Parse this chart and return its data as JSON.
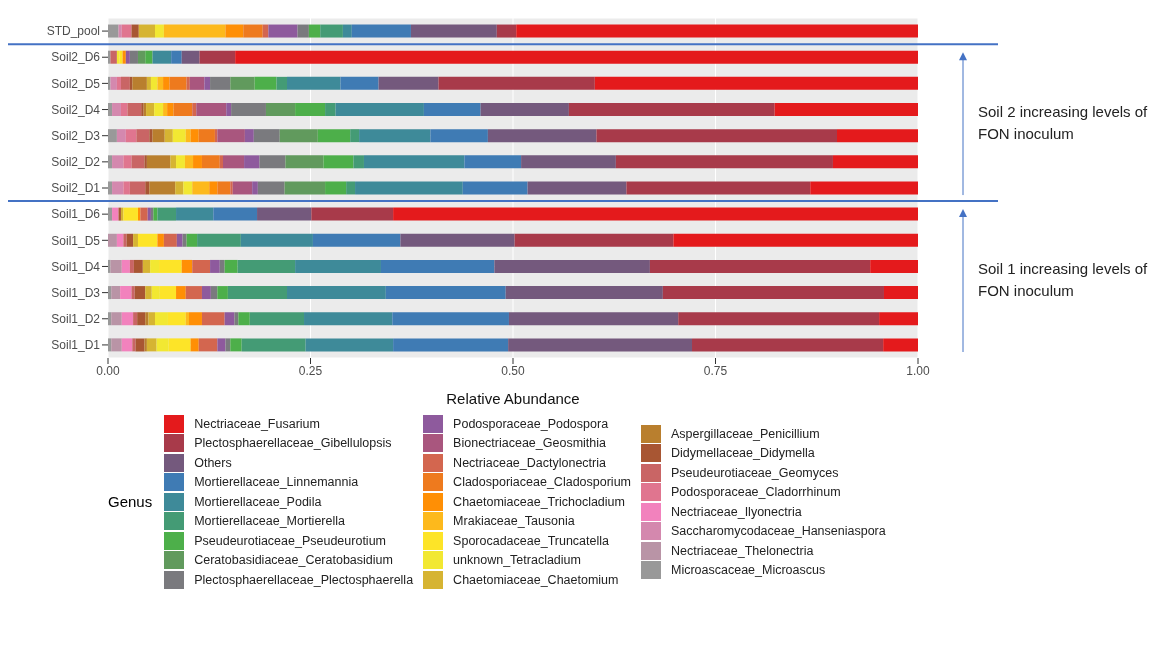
{
  "chart_data": {
    "type": "bar",
    "orientation": "horizontal",
    "stacked": true,
    "categories": [
      "STD_pool",
      "Soil2_D6",
      "Soil2_D5",
      "Soil2_D4",
      "Soil2_D3",
      "Soil2_D2",
      "Soil2_D1",
      "Soil1_D6",
      "Soil1_D5",
      "Soil1_D4",
      "Soil1_D3",
      "Soil1_D2",
      "Soil1_D1"
    ],
    "xlabel": "Relative Abundance",
    "legend_title": "Genus",
    "legend": "bottom",
    "grid": true,
    "xlim": [
      0,
      1
    ],
    "xticks": [
      {
        "value": 0,
        "label": "0.00"
      },
      {
        "value": 0.25,
        "label": "0.25"
      },
      {
        "value": 0.5,
        "label": "0.50"
      },
      {
        "value": 0.75,
        "label": "0.75"
      },
      {
        "value": 1,
        "label": "1.00"
      }
    ],
    "annotations": [
      "Soil 2 increasing levels of FON inoculum",
      "Soil 1 increasing levels of FON inoculum"
    ],
    "series": [
      {
        "name": "Microascaceae_Microascus",
        "color": "#999999",
        "values": [
          0.013,
          0.003,
          0.003,
          0.005,
          0.011,
          0.005,
          0.005,
          0.005,
          0,
          0.003,
          0.004,
          0.004,
          0.004
        ]
      },
      {
        "name": "Nectriaceae_Thelonectria",
        "color": "#b994a6",
        "values": [
          0,
          0,
          0,
          0,
          0,
          0,
          0,
          0,
          0.011,
          0.014,
          0.011,
          0.013,
          0.013
        ]
      },
      {
        "name": "Saccharomycodaceae_Hanseniaspora",
        "color": "#d488ae",
        "values": [
          0.004,
          0,
          0.008,
          0.011,
          0.011,
          0.014,
          0.014,
          0,
          0,
          0,
          0,
          0,
          0
        ]
      },
      {
        "name": "Nectriaceae_Ilyonectria",
        "color": "#f282bd",
        "values": [
          0,
          0,
          0,
          0,
          0,
          0,
          0,
          0.008,
          0.008,
          0.01,
          0.014,
          0.014,
          0.013
        ]
      },
      {
        "name": "Podosporaceae_Cladorrhinum",
        "color": "#e0758f",
        "values": [
          0.012,
          0,
          0.005,
          0.008,
          0.013,
          0.01,
          0.008,
          0,
          0,
          0,
          0,
          0,
          0
        ]
      },
      {
        "name": "Pseudeurotiaceae_Geomyces",
        "color": "#c96565",
        "values": [
          0,
          0.008,
          0.011,
          0.017,
          0.016,
          0.016,
          0.019,
          0,
          0.004,
          0.005,
          0.004,
          0.005,
          0.004
        ]
      },
      {
        "name": "Didymellaceae_Didymella",
        "color": "#a85633",
        "values": [
          0.009,
          0,
          0.003,
          0.003,
          0.004,
          0.003,
          0.005,
          0.003,
          0.008,
          0.011,
          0.013,
          0.01,
          0.011
        ]
      },
      {
        "name": "Aspergillaceae_Penicillium",
        "color": "#b97f2e",
        "values": [
          0,
          0,
          0.018,
          0.003,
          0.015,
          0.029,
          0.032,
          0,
          0,
          0,
          0,
          0.004,
          0.003
        ]
      },
      {
        "name": "Chaetomiaceae_Chaetomium",
        "color": "#d6b432",
        "values": [
          0.02,
          0,
          0.005,
          0.01,
          0.01,
          0.007,
          0.01,
          0.003,
          0.006,
          0.009,
          0.008,
          0.008,
          0.012
        ]
      },
      {
        "name": "unknown_Tetracladium",
        "color": "#f2e832",
        "values": [
          0.011,
          0.003,
          0.008,
          0.011,
          0.016,
          0.011,
          0.011,
          0,
          0,
          0.011,
          0.01,
          0.016,
          0.015
        ]
      },
      {
        "name": "Sporocadaceae_Truncatella",
        "color": "#fde428",
        "values": [
          0,
          0.004,
          0,
          0,
          0,
          0,
          0,
          0.018,
          0.024,
          0.028,
          0.02,
          0.022,
          0.027
        ]
      },
      {
        "name": "Mrakiaceae_Tausonia",
        "color": "#fdb91c",
        "values": [
          0.076,
          0,
          0.007,
          0.005,
          0.006,
          0.01,
          0.021,
          0,
          0,
          0,
          0,
          0.004,
          0
        ]
      },
      {
        "name": "Chaetomiaceae_Trichocladium",
        "color": "#ff8f05",
        "values": [
          0.022,
          0.004,
          0.008,
          0.008,
          0.01,
          0.011,
          0.01,
          0.003,
          0.008,
          0.013,
          0.012,
          0.016,
          0.01
        ]
      },
      {
        "name": "Cladosporiaceae_Cladosporium",
        "color": "#ee7a1e",
        "values": [
          0.024,
          0,
          0.021,
          0.023,
          0.02,
          0.022,
          0.016,
          0,
          0,
          0,
          0,
          0,
          0
        ]
      },
      {
        "name": "Nectriaceae_Dactylonectria",
        "color": "#d3664f",
        "values": [
          0.007,
          0,
          0.004,
          0.005,
          0.003,
          0.004,
          0.003,
          0.009,
          0.016,
          0.022,
          0.02,
          0.028,
          0.023
        ]
      },
      {
        "name": "Bionectriaceae_Geosmithia",
        "color": "#a9567e",
        "values": [
          0,
          0,
          0.018,
          0.037,
          0.034,
          0.026,
          0.024,
          0,
          0,
          0,
          0,
          0,
          0
        ]
      },
      {
        "name": "Podosporaceae_Podospora",
        "color": "#8e5a9d",
        "values": [
          0.036,
          0.005,
          0.007,
          0.006,
          0.011,
          0.019,
          0.007,
          0.004,
          0.007,
          0.012,
          0.011,
          0.012,
          0.01
        ]
      },
      {
        "name": "Plectosphaerellaceae_Plectosphaerella",
        "color": "#7a7a7e",
        "values": [
          0.014,
          0.01,
          0.025,
          0.043,
          0.032,
          0.032,
          0.033,
          0.003,
          0.005,
          0.006,
          0.008,
          0.005,
          0.006
        ]
      },
      {
        "name": "Ceratobasidiaceae_Ceratobasidium",
        "color": "#619a5d",
        "values": [
          0,
          0.009,
          0.03,
          0.036,
          0.047,
          0.047,
          0.05,
          0,
          0,
          0,
          0,
          0,
          0
        ]
      },
      {
        "name": "Pseudeurotiaceae_Pseudeurotium",
        "color": "#4daf4a",
        "values": [
          0.014,
          0.009,
          0.027,
          0.037,
          0.04,
          0.037,
          0.026,
          0.005,
          0.013,
          0.016,
          0.013,
          0.014,
          0.014
        ]
      },
      {
        "name": "Mortierellaceae_Mortierella",
        "color": "#449b75",
        "values": [
          0.028,
          0,
          0.013,
          0.013,
          0.011,
          0.013,
          0.011,
          0.023,
          0.054,
          0.071,
          0.073,
          0.067,
          0.079
        ]
      },
      {
        "name": "Mortierellaceae_Podila",
        "color": "#3e8a99",
        "values": [
          0.011,
          0.023,
          0.066,
          0.109,
          0.088,
          0.124,
          0.133,
          0.046,
          0.089,
          0.106,
          0.122,
          0.109,
          0.108
        ]
      },
      {
        "name": "Mortierellaceae_Linnemannia",
        "color": "#3f7bb4",
        "values": [
          0.073,
          0.013,
          0.047,
          0.07,
          0.071,
          0.07,
          0.08,
          0.054,
          0.108,
          0.14,
          0.148,
          0.144,
          0.142
        ]
      },
      {
        "name": "Others",
        "color": "#74597d",
        "values": [
          0.106,
          0.022,
          0.074,
          0.109,
          0.134,
          0.117,
          0.122,
          0.067,
          0.141,
          0.192,
          0.194,
          0.209,
          0.227
        ]
      },
      {
        "name": "Plectosphaerellaceae_Gibellulopsis",
        "color": "#a83a4a",
        "values": [
          0.024,
          0.044,
          0.193,
          0.254,
          0.297,
          0.268,
          0.227,
          0.101,
          0.196,
          0.272,
          0.273,
          0.248,
          0.236
        ]
      },
      {
        "name": "Nectriaceae_Fusarium",
        "color": "#e41a1c",
        "values": [
          0.496,
          0.843,
          0.399,
          0.177,
          0.1,
          0.105,
          0.133,
          0.648,
          0.302,
          0.059,
          0.042,
          0.048,
          0.043
        ]
      }
    ]
  }
}
